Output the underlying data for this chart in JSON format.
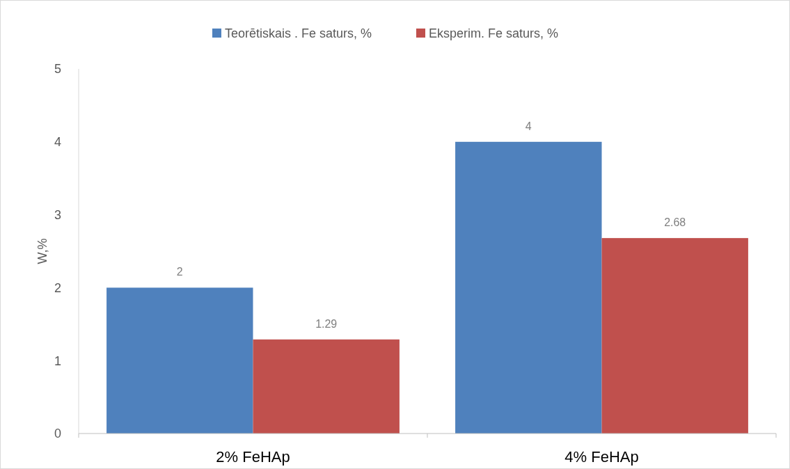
{
  "chart_data": {
    "type": "bar",
    "categories": [
      "2% FeHAp",
      "4% FeHAp"
    ],
    "series": [
      {
        "name": "Teorētiskais . Fe saturs, %",
        "color": "#4f81bd",
        "values": [
          2,
          4
        ]
      },
      {
        "name": "Eksperim. Fe saturs, %",
        "color": "#c0504d",
        "values": [
          1.29,
          2.68
        ]
      }
    ],
    "ylabel": "W,%",
    "ylim": [
      0,
      5
    ],
    "yticks": [
      0,
      1,
      2,
      3,
      4,
      5
    ],
    "data_labels": true,
    "legend": "top",
    "grid": false
  }
}
